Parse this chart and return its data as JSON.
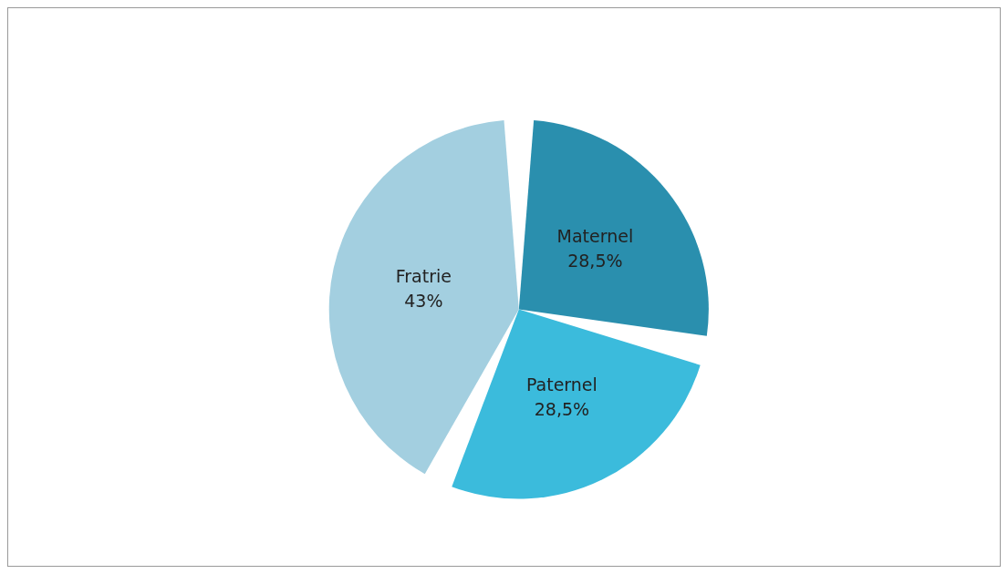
{
  "chart_data": {
    "type": "pie",
    "categories": [
      "Maternel",
      "Paternel",
      "Fratrie"
    ],
    "values": [
      28.5,
      28.5,
      43
    ],
    "value_labels": [
      "28,5%",
      "28,5%",
      "43%"
    ],
    "colors": [
      "#2a8fae",
      "#3bbbdc",
      "#a3cfe0"
    ]
  }
}
